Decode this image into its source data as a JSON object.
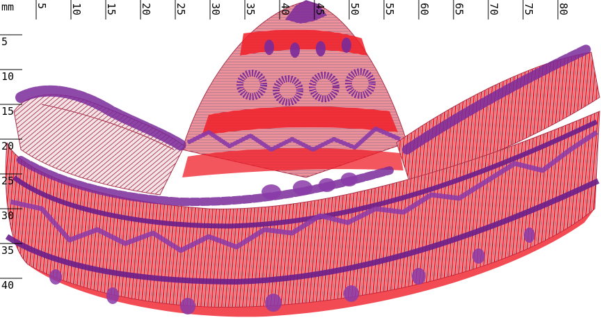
{
  "ruler": {
    "unit": "mm",
    "x_ticks": [
      "5",
      "10",
      "15",
      "20",
      "25",
      "30",
      "35",
      "40",
      "45",
      "50",
      "55",
      "60",
      "65",
      "70",
      "75",
      "80"
    ],
    "y_ticks": [
      "5",
      "10",
      "15",
      "20",
      "25",
      "30",
      "35",
      "40"
    ]
  },
  "design": {
    "subject": "sombrero embroidery stitch preview",
    "colors": {
      "red": "#f01e28",
      "dark_red": "#b02040",
      "purple": "#7a2a9a",
      "light_purple": "#9a4ab0",
      "pale": "#f2e2e6"
    }
  }
}
